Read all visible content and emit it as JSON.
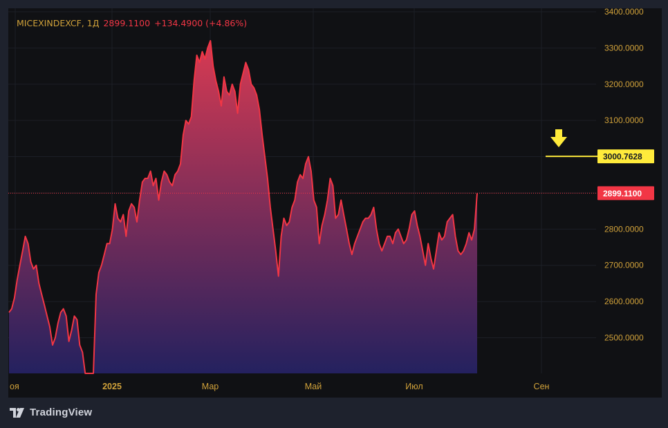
{
  "header": {
    "symbol": "MICEXINDEXCF, 1Д",
    "last_price": "2899.1100",
    "change": "+134.4900 (+4.86%)"
  },
  "branding": {
    "name": "TradingView"
  },
  "colors": {
    "background": "#101114",
    "frame": "#1e222d",
    "line": "#f23645",
    "area_top": "#d83a52",
    "area_bottom": "#24215f",
    "axis_text": "#d1a23a",
    "marker": "#ffeb3b",
    "price_badge": "#f23645"
  },
  "markers": {
    "level_label": "3000.7628",
    "last_label": "2899.1100"
  },
  "chart_data": {
    "type": "area",
    "title": "",
    "xlabel": "",
    "ylabel": "",
    "ylim": [
      2400,
      3400
    ],
    "yticks": [
      "3400.0000",
      "3300.0000",
      "3200.0000",
      "3100.0000",
      "3000.0000",
      "2900.0000",
      "2800.0000",
      "2700.0000",
      "2600.0000",
      "2500.0000"
    ],
    "xtick_labels": [
      "оя",
      "2025",
      "Мар",
      "Май",
      "Июл",
      "Сен"
    ],
    "horizontal_level": 3000.7628,
    "last_value": 2899.11,
    "series": [
      {
        "values": [
          2570,
          2580,
          2610,
          2660,
          2700,
          2740,
          2780,
          2760,
          2710,
          2690,
          2700,
          2650,
          2620,
          2590,
          2560,
          2530,
          2480,
          2500,
          2540,
          2570,
          2580,
          2560,
          2490,
          2520,
          2560,
          2550,
          2480,
          2460,
          2400,
          2380,
          2380,
          2390,
          2620,
          2680,
          2700,
          2730,
          2760,
          2760,
          2800,
          2870,
          2830,
          2820,
          2840,
          2780,
          2850,
          2870,
          2860,
          2820,
          2880,
          2930,
          2940,
          2940,
          2960,
          2920,
          2940,
          2880,
          2930,
          2960,
          2950,
          2930,
          2920,
          2950,
          2960,
          2980,
          3060,
          3100,
          3090,
          3110,
          3210,
          3280,
          3260,
          3290,
          3270,
          3300,
          3320,
          3250,
          3210,
          3180,
          3140,
          3220,
          3180,
          3170,
          3200,
          3180,
          3120,
          3200,
          3230,
          3260,
          3240,
          3200,
          3190,
          3170,
          3130,
          3060,
          3000,
          2940,
          2860,
          2800,
          2740,
          2670,
          2780,
          2830,
          2810,
          2820,
          2860,
          2880,
          2930,
          2950,
          2940,
          2980,
          3000,
          2960,
          2880,
          2860,
          2760,
          2810,
          2840,
          2880,
          2940,
          2920,
          2830,
          2840,
          2880,
          2840,
          2800,
          2760,
          2730,
          2760,
          2780,
          2800,
          2820,
          2830,
          2830,
          2840,
          2860,
          2800,
          2760,
          2740,
          2760,
          2780,
          2780,
          2760,
          2790,
          2800,
          2780,
          2760,
          2770,
          2800,
          2840,
          2850,
          2810,
          2780,
          2740,
          2700,
          2760,
          2720,
          2690,
          2740,
          2790,
          2770,
          2780,
          2820,
          2830,
          2840,
          2780,
          2740,
          2730,
          2740,
          2760,
          2790,
          2770,
          2800,
          2899
        ]
      }
    ]
  }
}
